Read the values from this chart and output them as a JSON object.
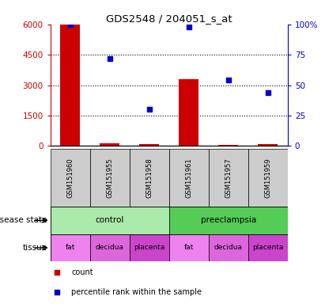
{
  "title": "GDS2548 / 204051_s_at",
  "samples": [
    "GSM151960",
    "GSM151955",
    "GSM151958",
    "GSM151961",
    "GSM151957",
    "GSM151959"
  ],
  "count_values": [
    6000,
    120,
    80,
    3300,
    50,
    80
  ],
  "percentile_values": [
    100,
    72,
    30,
    98,
    54,
    44
  ],
  "ylim_left": [
    0,
    6000
  ],
  "ylim_right": [
    0,
    100
  ],
  "yticks_left": [
    0,
    1500,
    3000,
    4500,
    6000
  ],
  "ytick_labels_left": [
    "0",
    "1500",
    "3000",
    "4500",
    "6000"
  ],
  "yticks_right": [
    0,
    25,
    50,
    75,
    100
  ],
  "ytick_labels_right": [
    "0",
    "25",
    "50",
    "75",
    "100%"
  ],
  "disease_state": [
    {
      "label": "control",
      "span": [
        0,
        3
      ],
      "color": "#AAEAAA"
    },
    {
      "label": "preeclampsia",
      "span": [
        3,
        6
      ],
      "color": "#55CC55"
    }
  ],
  "tissue": [
    {
      "label": "fat",
      "span": [
        0,
        1
      ],
      "color": "#EE82EE"
    },
    {
      "label": "decidua",
      "span": [
        1,
        2
      ],
      "color": "#DD66DD"
    },
    {
      "label": "placenta",
      "span": [
        2,
        3
      ],
      "color": "#CC44CC"
    },
    {
      "label": "fat",
      "span": [
        3,
        4
      ],
      "color": "#EE82EE"
    },
    {
      "label": "decidua",
      "span": [
        4,
        5
      ],
      "color": "#DD66DD"
    },
    {
      "label": "placenta",
      "span": [
        5,
        6
      ],
      "color": "#CC44CC"
    }
  ],
  "bar_color": "#CC0000",
  "scatter_color": "#0000CC",
  "bar_width": 0.5,
  "legend_items": [
    {
      "label": "count",
      "color": "#CC0000"
    },
    {
      "label": "percentile rank within the sample",
      "color": "#0000CC"
    }
  ],
  "left_axis_color": "#CC0000",
  "right_axis_color": "#0000CC",
  "sample_box_color": "#CCCCCC",
  "disease_state_label": "disease state",
  "tissue_label": "tissue"
}
